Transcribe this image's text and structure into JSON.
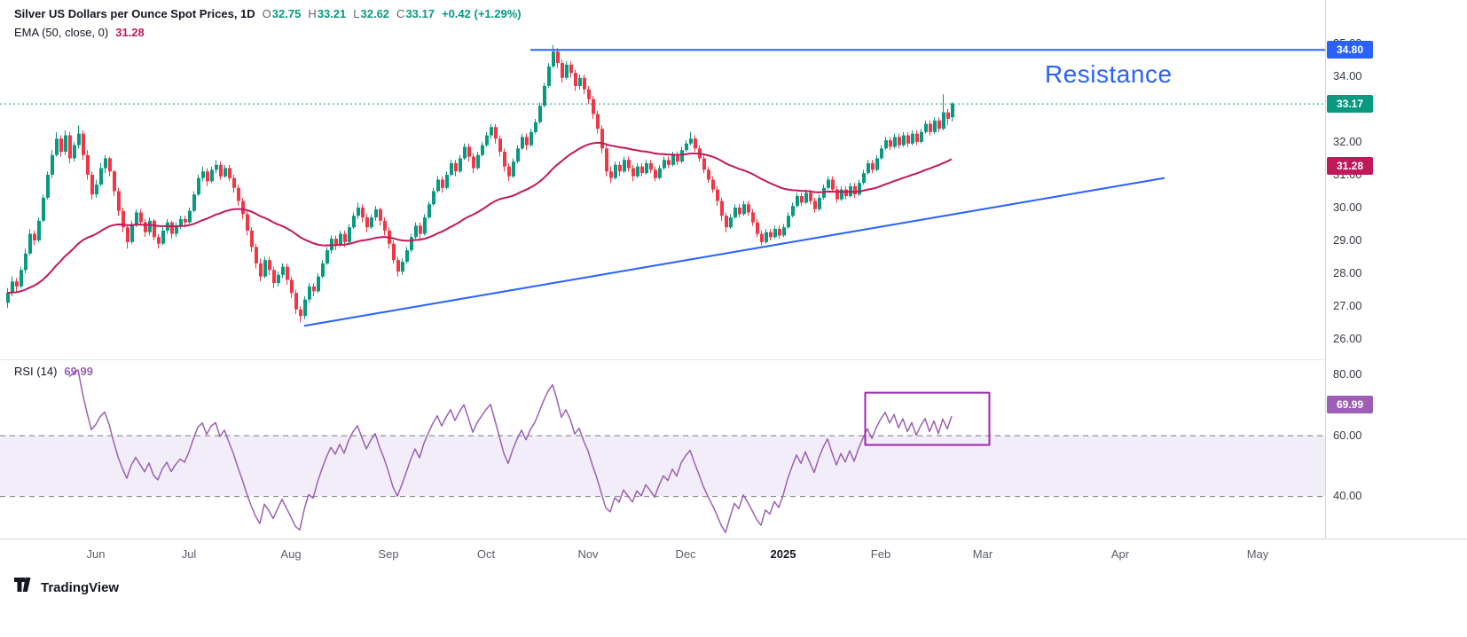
{
  "header": {
    "title": "Silver US Dollars per Ounce Spot Prices, 1D",
    "ohlc": [
      {
        "k": "O",
        "v": "32.75"
      },
      {
        "k": "H",
        "v": "33.21"
      },
      {
        "k": "L",
        "v": "32.62"
      },
      {
        "k": "C",
        "v": "33.17"
      }
    ],
    "change": "+0.42 (+1.29%)"
  },
  "ema_legend": {
    "label": "EMA (50, close, 0)",
    "value": "31.28"
  },
  "rsi_legend": {
    "label": "RSI (14)",
    "value": "69.99"
  },
  "watermark": {
    "brand": "TradingView"
  },
  "chart_data": {
    "type": "candlestick",
    "interval": "1D",
    "ylim": [
      25.38,
      36.32
    ],
    "grid": false,
    "colors": {
      "up": "#089981",
      "down": "#F23645",
      "blue": "#2962FF",
      "axis_border": "#D1D4DC",
      "divider": "#E0E3EB"
    },
    "y_ticks": [
      {
        "label": "35.00",
        "value": 35
      },
      {
        "label": "34.00",
        "value": 34
      },
      {
        "label": "33.00",
        "value": 33
      },
      {
        "label": "32.00",
        "value": 32
      },
      {
        "label": "31.00",
        "value": 31
      },
      {
        "label": "30.00",
        "value": 30
      },
      {
        "label": "29.00",
        "value": 29
      },
      {
        "label": "28.00",
        "value": 28
      },
      {
        "label": "27.00",
        "value": 27
      },
      {
        "label": "26.00",
        "value": 26
      }
    ],
    "x_ticks": [
      {
        "label": "Jun",
        "index": 20
      },
      {
        "label": "Jul",
        "index": 41
      },
      {
        "label": "Aug",
        "index": 64
      },
      {
        "label": "Sep",
        "index": 86
      },
      {
        "label": "Oct",
        "index": 108
      },
      {
        "label": "Nov",
        "index": 131
      },
      {
        "label": "Dec",
        "index": 153
      },
      {
        "label": "2025",
        "index": 175,
        "strong": true
      },
      {
        "label": "Feb",
        "index": 197
      },
      {
        "label": "Mar",
        "index": 220
      },
      {
        "label": "Apr",
        "index": 251
      },
      {
        "label": "May",
        "index": 282
      }
    ],
    "ema": {
      "period": 50,
      "color": "#C2185B",
      "value": 31.28,
      "badge": "31.28"
    },
    "annotations": {
      "resistance": {
        "label": "Resistance",
        "price": 34.8,
        "start_index": 118,
        "color": "#2962FF",
        "badge": "34.80"
      },
      "support_trendline": {
        "from_index": 67,
        "from_price": 26.4,
        "to_index": 261,
        "to_price": 30.9,
        "color": "#2962FF"
      },
      "last_price": {
        "value": 33.17,
        "badge": "33.17",
        "color": "#089981",
        "line_style": "dotted"
      }
    },
    "rsi": {
      "period": 14,
      "value": 69.99,
      "badge": "69.99",
      "color": "#9C5FB5",
      "ylim": [
        26,
        85
      ],
      "y_ticks": [
        {
          "label": "80.00",
          "value": 80
        },
        {
          "label": "60.00",
          "value": 60
        },
        {
          "label": "40.00",
          "value": 40
        }
      ],
      "band": {
        "upper": 60,
        "lower": 40,
        "fill": "rgba(149,117,205,0.12)",
        "line_color": "#787B86"
      },
      "box": {
        "start_index": 193.5,
        "end_index": 221.5,
        "low": 56.8,
        "high": 74,
        "color": "#9C27B0"
      }
    },
    "candles": [
      [
        27.1,
        27.55,
        26.95,
        27.4
      ],
      [
        27.4,
        27.9,
        27.3,
        27.75
      ],
      [
        27.75,
        27.85,
        27.45,
        27.6
      ],
      [
        27.6,
        28.2,
        27.55,
        28.1
      ],
      [
        28.1,
        28.75,
        28.0,
        28.6
      ],
      [
        28.6,
        29.35,
        28.55,
        29.2
      ],
      [
        29.2,
        29.3,
        28.85,
        29.0
      ],
      [
        29.0,
        29.7,
        28.95,
        29.6
      ],
      [
        29.6,
        30.4,
        29.55,
        30.3
      ],
      [
        30.3,
        31.1,
        30.25,
        31.0
      ],
      [
        31.0,
        31.75,
        30.9,
        31.6
      ],
      [
        31.6,
        32.3,
        31.55,
        32.1
      ],
      [
        32.1,
        32.2,
        31.55,
        31.7
      ],
      [
        31.7,
        32.35,
        31.6,
        32.2
      ],
      [
        32.2,
        32.3,
        31.35,
        31.5
      ],
      [
        31.5,
        32.0,
        31.4,
        31.9
      ],
      [
        31.9,
        32.5,
        31.8,
        32.25
      ],
      [
        32.25,
        32.35,
        31.45,
        31.6
      ],
      [
        31.6,
        31.75,
        30.85,
        31.0
      ],
      [
        31.0,
        31.1,
        30.25,
        30.4
      ],
      [
        30.4,
        30.85,
        30.3,
        30.7
      ],
      [
        30.7,
        31.35,
        30.65,
        31.2
      ],
      [
        31.2,
        31.6,
        31.05,
        31.5
      ],
      [
        31.5,
        31.55,
        30.95,
        31.1
      ],
      [
        31.1,
        31.15,
        30.35,
        30.5
      ],
      [
        30.5,
        30.6,
        29.75,
        29.9
      ],
      [
        29.9,
        30.0,
        29.25,
        29.4
      ],
      [
        29.4,
        29.5,
        28.75,
        28.95
      ],
      [
        28.95,
        29.6,
        28.9,
        29.5
      ],
      [
        29.5,
        29.95,
        29.4,
        29.85
      ],
      [
        29.85,
        29.95,
        29.45,
        29.55
      ],
      [
        29.55,
        29.65,
        29.1,
        29.25
      ],
      [
        29.25,
        29.7,
        29.15,
        29.6
      ],
      [
        29.6,
        29.65,
        29.0,
        29.1
      ],
      [
        29.1,
        29.2,
        28.75,
        28.9
      ],
      [
        28.9,
        29.4,
        28.85,
        29.3
      ],
      [
        29.3,
        29.65,
        29.2,
        29.55
      ],
      [
        29.55,
        29.6,
        29.05,
        29.2
      ],
      [
        29.2,
        29.55,
        29.1,
        29.45
      ],
      [
        29.45,
        29.75,
        29.35,
        29.65
      ],
      [
        29.65,
        29.75,
        29.4,
        29.55
      ],
      [
        29.55,
        30.0,
        29.5,
        29.9
      ],
      [
        29.9,
        30.5,
        29.85,
        30.4
      ],
      [
        30.4,
        31.0,
        30.35,
        30.9
      ],
      [
        30.9,
        31.25,
        30.8,
        31.1
      ],
      [
        31.1,
        31.2,
        30.65,
        30.8
      ],
      [
        30.8,
        31.25,
        30.75,
        31.15
      ],
      [
        31.15,
        31.45,
        31.05,
        31.3
      ],
      [
        31.3,
        31.4,
        30.85,
        30.95
      ],
      [
        30.95,
        31.3,
        30.9,
        31.2
      ],
      [
        31.2,
        31.3,
        30.8,
        30.9
      ],
      [
        30.9,
        31.0,
        30.45,
        30.6
      ],
      [
        30.6,
        30.7,
        30.05,
        30.2
      ],
      [
        30.2,
        30.3,
        29.65,
        29.8
      ],
      [
        29.8,
        29.9,
        29.15,
        29.3
      ],
      [
        29.3,
        29.4,
        28.65,
        28.8
      ],
      [
        28.8,
        28.9,
        28.15,
        28.3
      ],
      [
        28.3,
        28.45,
        27.75,
        27.9
      ],
      [
        27.9,
        28.5,
        27.85,
        28.4
      ],
      [
        28.4,
        28.5,
        27.95,
        28.1
      ],
      [
        28.1,
        28.2,
        27.55,
        27.7
      ],
      [
        27.7,
        28.05,
        27.6,
        27.95
      ],
      [
        27.95,
        28.3,
        27.85,
        28.2
      ],
      [
        28.2,
        28.3,
        27.65,
        27.8
      ],
      [
        27.8,
        27.9,
        27.25,
        27.4
      ],
      [
        27.4,
        27.5,
        26.75,
        26.9
      ],
      [
        26.9,
        27.0,
        26.5,
        26.7
      ],
      [
        26.7,
        27.3,
        26.6,
        27.2
      ],
      [
        27.2,
        27.7,
        27.1,
        27.6
      ],
      [
        27.6,
        27.7,
        27.3,
        27.45
      ],
      [
        27.45,
        28.0,
        27.4,
        27.9
      ],
      [
        27.9,
        28.4,
        27.85,
        28.3
      ],
      [
        28.3,
        28.8,
        28.25,
        28.7
      ],
      [
        28.7,
        29.15,
        28.6,
        29.05
      ],
      [
        29.05,
        29.15,
        28.7,
        28.85
      ],
      [
        28.85,
        29.3,
        28.8,
        29.2
      ],
      [
        29.2,
        29.3,
        28.8,
        28.95
      ],
      [
        28.95,
        29.5,
        28.9,
        29.4
      ],
      [
        29.4,
        29.85,
        29.35,
        29.75
      ],
      [
        29.75,
        30.15,
        29.65,
        30.0
      ],
      [
        30.0,
        30.1,
        29.55,
        29.7
      ],
      [
        29.7,
        29.8,
        29.25,
        29.4
      ],
      [
        29.4,
        29.8,
        29.35,
        29.7
      ],
      [
        29.7,
        30.05,
        29.6,
        29.95
      ],
      [
        29.95,
        30.0,
        29.45,
        29.6
      ],
      [
        29.6,
        29.7,
        29.15,
        29.3
      ],
      [
        29.3,
        29.4,
        28.75,
        28.9
      ],
      [
        28.9,
        29.0,
        28.3,
        28.4
      ],
      [
        28.4,
        28.5,
        27.9,
        28.05
      ],
      [
        28.05,
        28.45,
        27.95,
        28.35
      ],
      [
        28.35,
        28.8,
        28.3,
        28.7
      ],
      [
        28.7,
        29.2,
        28.65,
        29.1
      ],
      [
        29.1,
        29.55,
        29.05,
        29.45
      ],
      [
        29.45,
        29.55,
        29.05,
        29.2
      ],
      [
        29.2,
        29.8,
        29.15,
        29.7
      ],
      [
        29.7,
        30.2,
        29.65,
        30.1
      ],
      [
        30.1,
        30.6,
        30.05,
        30.5
      ],
      [
        30.5,
        30.95,
        30.45,
        30.85
      ],
      [
        30.85,
        30.95,
        30.45,
        30.6
      ],
      [
        30.6,
        31.1,
        30.55,
        31.0
      ],
      [
        31.0,
        31.45,
        30.95,
        31.35
      ],
      [
        31.35,
        31.45,
        30.95,
        31.1
      ],
      [
        31.1,
        31.6,
        31.05,
        31.5
      ],
      [
        31.5,
        31.95,
        31.45,
        31.85
      ],
      [
        31.85,
        31.95,
        31.4,
        31.55
      ],
      [
        31.55,
        31.65,
        31.05,
        31.2
      ],
      [
        31.2,
        31.7,
        31.15,
        31.6
      ],
      [
        31.6,
        32.0,
        31.55,
        31.9
      ],
      [
        31.9,
        32.3,
        31.85,
        32.2
      ],
      [
        32.2,
        32.55,
        32.1,
        32.45
      ],
      [
        32.45,
        32.55,
        31.95,
        32.1
      ],
      [
        32.1,
        32.2,
        31.55,
        31.7
      ],
      [
        31.7,
        31.8,
        31.1,
        31.25
      ],
      [
        31.25,
        31.35,
        30.8,
        30.95
      ],
      [
        30.95,
        31.5,
        30.9,
        31.4
      ],
      [
        31.4,
        31.9,
        31.35,
        31.8
      ],
      [
        31.8,
        32.25,
        31.75,
        32.15
      ],
      [
        32.15,
        32.25,
        31.75,
        31.9
      ],
      [
        31.9,
        32.4,
        31.85,
        32.3
      ],
      [
        32.3,
        32.7,
        32.25,
        32.6
      ],
      [
        32.6,
        33.2,
        32.55,
        33.1
      ],
      [
        33.1,
        33.8,
        33.05,
        33.7
      ],
      [
        33.7,
        34.4,
        33.65,
        34.3
      ],
      [
        34.3,
        34.95,
        34.25,
        34.75
      ],
      [
        34.75,
        34.85,
        34.25,
        34.4
      ],
      [
        34.4,
        34.5,
        33.8,
        33.95
      ],
      [
        33.95,
        34.45,
        33.9,
        34.35
      ],
      [
        34.35,
        34.45,
        33.95,
        34.1
      ],
      [
        34.1,
        34.2,
        33.55,
        33.7
      ],
      [
        33.7,
        34.05,
        33.6,
        33.95
      ],
      [
        33.95,
        34.05,
        33.45,
        33.6
      ],
      [
        33.6,
        33.7,
        33.15,
        33.3
      ],
      [
        33.3,
        33.4,
        32.7,
        32.85
      ],
      [
        32.85,
        32.95,
        32.25,
        32.4
      ],
      [
        32.4,
        32.5,
        31.65,
        31.8
      ],
      [
        31.8,
        31.9,
        30.95,
        31.1
      ],
      [
        31.1,
        31.25,
        30.75,
        30.9
      ],
      [
        30.9,
        31.4,
        30.85,
        31.3
      ],
      [
        31.3,
        31.4,
        30.95,
        31.1
      ],
      [
        31.1,
        31.55,
        31.05,
        31.45
      ],
      [
        31.45,
        31.55,
        31.1,
        31.2
      ],
      [
        31.2,
        31.3,
        30.8,
        30.95
      ],
      [
        30.95,
        31.35,
        30.9,
        31.25
      ],
      [
        31.25,
        31.35,
        30.95,
        31.05
      ],
      [
        31.05,
        31.45,
        31.0,
        31.35
      ],
      [
        31.35,
        31.45,
        31.05,
        31.15
      ],
      [
        31.15,
        31.25,
        30.8,
        30.9
      ],
      [
        30.9,
        31.3,
        30.85,
        31.2
      ],
      [
        31.2,
        31.55,
        31.15,
        31.45
      ],
      [
        31.45,
        31.55,
        31.2,
        31.3
      ],
      [
        31.3,
        31.7,
        31.25,
        31.6
      ],
      [
        31.6,
        31.7,
        31.3,
        31.4
      ],
      [
        31.4,
        31.85,
        31.35,
        31.75
      ],
      [
        31.75,
        32.05,
        31.7,
        31.95
      ],
      [
        31.95,
        32.3,
        31.9,
        32.1
      ],
      [
        32.1,
        32.2,
        31.7,
        31.8
      ],
      [
        31.8,
        31.9,
        31.4,
        31.5
      ],
      [
        31.5,
        31.6,
        31.05,
        31.15
      ],
      [
        31.15,
        31.25,
        30.75,
        30.85
      ],
      [
        30.85,
        30.95,
        30.45,
        30.55
      ],
      [
        30.55,
        30.65,
        30.05,
        30.2
      ],
      [
        30.2,
        30.3,
        29.6,
        29.75
      ],
      [
        29.75,
        29.85,
        29.25,
        29.4
      ],
      [
        29.4,
        29.8,
        29.35,
        29.7
      ],
      [
        29.7,
        30.1,
        29.65,
        30.0
      ],
      [
        30.0,
        30.1,
        29.7,
        29.8
      ],
      [
        29.8,
        30.2,
        29.75,
        30.1
      ],
      [
        30.1,
        30.2,
        29.75,
        29.85
      ],
      [
        29.85,
        29.95,
        29.45,
        29.55
      ],
      [
        29.55,
        29.65,
        29.1,
        29.2
      ],
      [
        29.2,
        29.3,
        28.85,
        28.95
      ],
      [
        28.95,
        29.35,
        28.9,
        29.25
      ],
      [
        29.25,
        29.35,
        29.0,
        29.1
      ],
      [
        29.1,
        29.45,
        29.05,
        29.35
      ],
      [
        29.35,
        29.45,
        29.05,
        29.15
      ],
      [
        29.15,
        29.5,
        29.1,
        29.4
      ],
      [
        29.4,
        29.85,
        29.35,
        29.75
      ],
      [
        29.75,
        30.15,
        29.7,
        30.05
      ],
      [
        30.05,
        30.45,
        30.0,
        30.35
      ],
      [
        30.35,
        30.45,
        30.05,
        30.15
      ],
      [
        30.15,
        30.55,
        30.1,
        30.45
      ],
      [
        30.45,
        30.55,
        30.1,
        30.2
      ],
      [
        30.2,
        30.3,
        29.85,
        29.95
      ],
      [
        29.95,
        30.4,
        29.9,
        30.3
      ],
      [
        30.3,
        30.7,
        30.25,
        30.6
      ],
      [
        30.6,
        30.95,
        30.55,
        30.85
      ],
      [
        30.85,
        30.95,
        30.45,
        30.55
      ],
      [
        30.55,
        30.65,
        30.15,
        30.25
      ],
      [
        30.25,
        30.65,
        30.2,
        30.55
      ],
      [
        30.55,
        30.65,
        30.25,
        30.35
      ],
      [
        30.35,
        30.75,
        30.3,
        30.65
      ],
      [
        30.65,
        30.75,
        30.3,
        30.4
      ],
      [
        30.4,
        30.85,
        30.35,
        30.75
      ],
      [
        30.75,
        31.15,
        30.7,
        31.05
      ],
      [
        31.05,
        31.45,
        31.0,
        31.35
      ],
      [
        31.35,
        31.45,
        31.05,
        31.15
      ],
      [
        31.15,
        31.6,
        31.1,
        31.5
      ],
      [
        31.5,
        31.9,
        31.45,
        31.8
      ],
      [
        31.8,
        32.15,
        31.75,
        32.05
      ],
      [
        32.05,
        32.15,
        31.75,
        31.85
      ],
      [
        31.85,
        32.25,
        31.8,
        32.15
      ],
      [
        32.15,
        32.25,
        31.8,
        31.9
      ],
      [
        31.9,
        32.3,
        31.85,
        32.2
      ],
      [
        32.2,
        32.3,
        31.85,
        31.95
      ],
      [
        31.95,
        32.35,
        31.9,
        32.25
      ],
      [
        32.25,
        32.35,
        31.9,
        32.0
      ],
      [
        32.0,
        32.4,
        31.95,
        32.3
      ],
      [
        32.3,
        32.65,
        32.25,
        32.55
      ],
      [
        32.55,
        32.65,
        32.2,
        32.3
      ],
      [
        32.3,
        32.75,
        32.25,
        32.65
      ],
      [
        32.65,
        32.75,
        32.3,
        32.4
      ],
      [
        32.4,
        33.45,
        32.35,
        32.9
      ],
      [
        32.9,
        33.0,
        32.5,
        32.7
      ],
      [
        32.75,
        33.21,
        32.62,
        33.17
      ]
    ]
  }
}
